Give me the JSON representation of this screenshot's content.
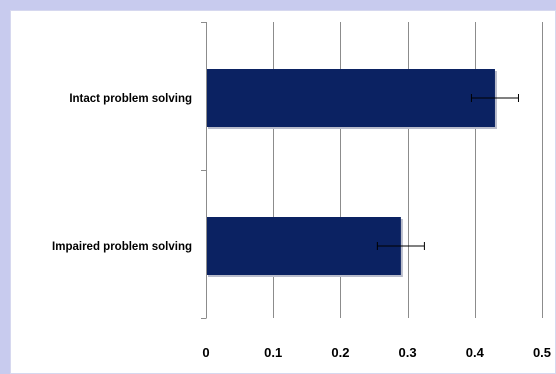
{
  "chart_data": {
    "type": "bar",
    "orientation": "horizontal",
    "categories": [
      "Intact problem solving",
      "Impaired problem solving"
    ],
    "values": [
      0.43,
      0.29
    ],
    "error_bars": [
      0.035,
      0.035
    ],
    "xlim": [
      0,
      0.5
    ],
    "x_ticks": [
      "0",
      "0.1",
      "0.2",
      "0.3",
      "0.4",
      "0.5"
    ],
    "x_tick_values": [
      0,
      0.1,
      0.2,
      0.3,
      0.4,
      0.5
    ],
    "grid": true,
    "legend": "none",
    "title": "",
    "xlabel": "",
    "ylabel": ""
  },
  "colors": {
    "bar": "#0b2262",
    "frame": "#c8cbee",
    "grid": "#8c8c8c"
  }
}
